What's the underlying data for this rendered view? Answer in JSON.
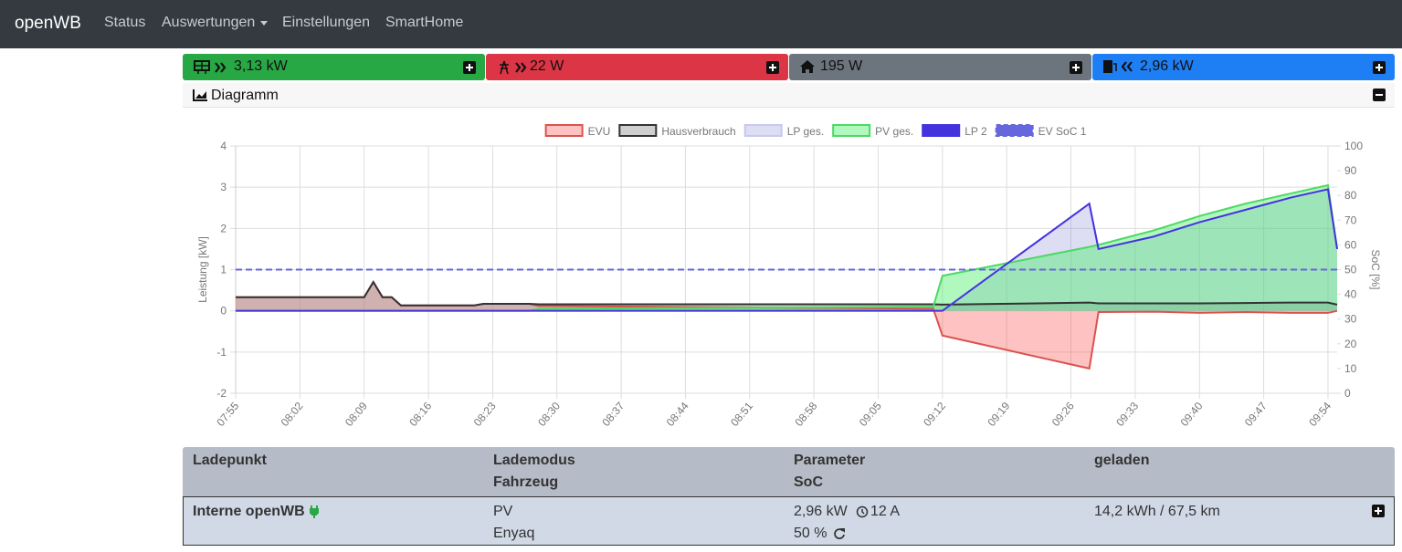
{
  "nav": {
    "brand": "openWB",
    "items": [
      "Status",
      "Auswertungen",
      "Einstellungen",
      "SmartHome"
    ]
  },
  "summary": [
    {
      "value": "3,13 kW"
    },
    {
      "value": "22 W"
    },
    {
      "value": "195 W"
    },
    {
      "value": "2,96 kW"
    }
  ],
  "panel": {
    "title": "Diagramm"
  },
  "chart_data": {
    "type": "line",
    "y_label": "Leistung [kW]",
    "y2_label": "SoC [%]",
    "x": [
      "07:55",
      "08:09",
      "08:10",
      "08:11",
      "08:12",
      "08:13",
      "08:21",
      "08:22",
      "08:27",
      "08:28",
      "09:11",
      "09:12",
      "09:28",
      "09:29",
      "09:35",
      "09:40",
      "09:45",
      "09:50",
      "09:54",
      "09:55"
    ],
    "xlim": [
      "07:55",
      "09:55"
    ],
    "xticks": [
      "07:55",
      "08:02",
      "08:09",
      "08:16",
      "08:23",
      "08:30",
      "08:37",
      "08:44",
      "08:51",
      "08:58",
      "09:05",
      "09:12",
      "09:19",
      "09:26",
      "09:33",
      "09:40",
      "09:47",
      "09:54"
    ],
    "ylim": [
      -2,
      4
    ],
    "yticks": [
      -2,
      -1,
      0,
      1,
      2,
      3,
      4
    ],
    "y2lim": [
      0,
      100
    ],
    "y2ticks": [
      0,
      10,
      20,
      30,
      40,
      50,
      60,
      70,
      80,
      90,
      100
    ],
    "grid": true,
    "series": [
      {
        "name": "EVU",
        "color": "#d9534f",
        "fill": "rgba(255,80,80,0.35)",
        "values": [
          0.33,
          0.33,
          0.7,
          0.33,
          0.33,
          0.13,
          0.13,
          0.17,
          0.17,
          0.12,
          0.05,
          -0.6,
          -1.4,
          -0.03,
          -0.02,
          -0.05,
          -0.03,
          -0.05,
          -0.05,
          0
        ]
      },
      {
        "name": "Hausverbrauch",
        "color": "#333333",
        "fill": "rgba(160,160,160,0.5)",
        "values": [
          0.33,
          0.33,
          0.7,
          0.33,
          0.33,
          0.13,
          0.13,
          0.17,
          0.17,
          0.16,
          0.16,
          0.15,
          0.2,
          0.18,
          0.18,
          0.18,
          0.19,
          0.2,
          0.2,
          0.15
        ]
      },
      {
        "name": "LP ges.",
        "color": "#c8c8f0",
        "fill": "rgba(120,120,210,0.25)",
        "values": [
          0,
          0,
          0,
          0,
          0,
          0,
          0,
          0,
          0,
          0,
          0,
          0,
          2.6,
          1.5,
          1.8,
          2.15,
          2.45,
          2.75,
          2.95,
          1.5
        ]
      },
      {
        "name": "PV ges.",
        "color": "#4cd964",
        "fill": "rgba(80,240,110,0.45)",
        "values": [
          0,
          0,
          0,
          0,
          0,
          0,
          0,
          0,
          0,
          0.05,
          0.1,
          0.85,
          1.55,
          1.6,
          1.95,
          2.3,
          2.6,
          2.85,
          3.05,
          1.5
        ]
      },
      {
        "name": "LP 2",
        "color": "#4433dd",
        "values": [
          0,
          0,
          0,
          0,
          0,
          0,
          0,
          0,
          0,
          0,
          0,
          0,
          2.6,
          1.5,
          1.8,
          2.15,
          2.45,
          2.75,
          2.95,
          1.5
        ]
      },
      {
        "name": "EV SoC 1",
        "color": "#6666dd",
        "dash": true,
        "axis": "y2",
        "values": [
          50,
          50,
          50,
          50,
          50,
          50,
          50,
          50,
          50,
          50,
          50,
          50,
          50,
          50,
          50,
          50,
          50,
          50,
          50,
          50
        ]
      }
    ]
  },
  "table": {
    "header": [
      "Ladepunkt",
      "Lademodus",
      "Fahrzeug",
      "Parameter",
      "SoC",
      "geladen"
    ],
    "rows": [
      {
        "ladepunkt": "Interne openWB",
        "lademodus": "PV",
        "fahrzeug": "Enyaq",
        "leistung": "2,96 kW",
        "strom": "12 A",
        "soc": "50 %",
        "geladen": "14,2 kWh / 67,5 km"
      }
    ]
  }
}
